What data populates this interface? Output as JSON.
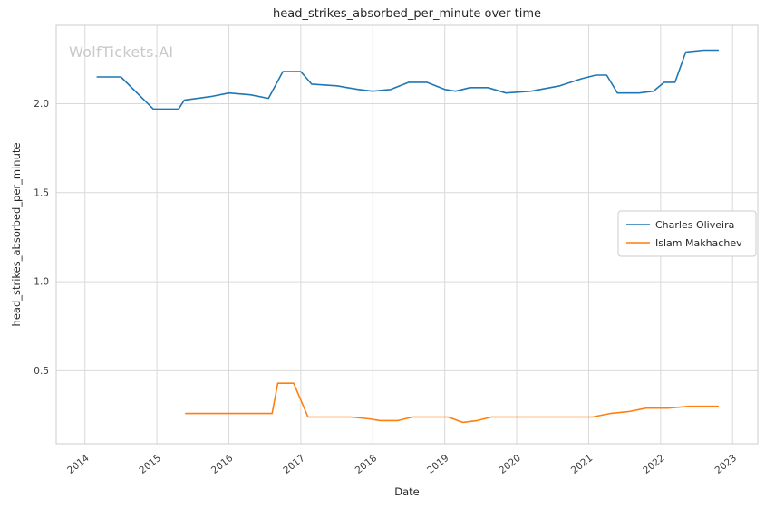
{
  "watermark": "WolfTickets.AI",
  "colors": {
    "series1": "#1f77b4",
    "series2": "#ff7f0e",
    "grid": "#d9d9d9",
    "axis_border": "#cccccc",
    "text": "#262626",
    "tick_text": "#3a3a3a",
    "watermark": "#c9c9c9",
    "legend_border": "#cccccc",
    "background": "#ffffff"
  },
  "chart_data": {
    "type": "line",
    "title": "head_strikes_absorbed_per_minute over time",
    "xlabel": "Date",
    "ylabel": "head_strikes_absorbed_per_minute",
    "xlim": [
      2013.6,
      2023.35
    ],
    "ylim": [
      0.09,
      2.44
    ],
    "x_ticks": [
      2014,
      2015,
      2016,
      2017,
      2018,
      2019,
      2020,
      2021,
      2022,
      2023
    ],
    "y_ticks": [
      0.5,
      1.0,
      1.5,
      2.0
    ],
    "grid": true,
    "legend_position": "center right",
    "series": [
      {
        "name": "Charles Oliveira",
        "color": "#1f77b4",
        "x": [
          2014.17,
          2014.5,
          2014.95,
          2015.3,
          2015.38,
          2015.75,
          2016.0,
          2016.3,
          2016.55,
          2016.75,
          2017.0,
          2017.15,
          2017.5,
          2017.8,
          2018.0,
          2018.25,
          2018.5,
          2018.75,
          2019.0,
          2019.15,
          2019.35,
          2019.6,
          2019.85,
          2020.2,
          2020.6,
          2020.9,
          2021.1,
          2021.25,
          2021.4,
          2021.7,
          2021.9,
          2022.05,
          2022.2,
          2022.35,
          2022.6,
          2022.8
        ],
        "y": [
          2.15,
          2.15,
          1.97,
          1.97,
          2.02,
          2.04,
          2.06,
          2.05,
          2.03,
          2.18,
          2.18,
          2.11,
          2.1,
          2.08,
          2.07,
          2.08,
          2.12,
          2.12,
          2.08,
          2.07,
          2.09,
          2.09,
          2.06,
          2.07,
          2.1,
          2.14,
          2.16,
          2.16,
          2.06,
          2.06,
          2.07,
          2.12,
          2.12,
          2.29,
          2.3,
          2.3
        ]
      },
      {
        "name": "Islam Makhachev",
        "color": "#ff7f0e",
        "x": [
          2015.4,
          2015.7,
          2016.0,
          2016.3,
          2016.6,
          2016.68,
          2016.9,
          2017.1,
          2017.4,
          2017.7,
          2017.95,
          2018.1,
          2018.35,
          2018.55,
          2018.8,
          2019.05,
          2019.25,
          2019.45,
          2019.65,
          2019.9,
          2020.2,
          2020.5,
          2020.8,
          2021.05,
          2021.3,
          2021.55,
          2021.8,
          2022.1,
          2022.4,
          2022.8
        ],
        "y": [
          0.26,
          0.26,
          0.26,
          0.26,
          0.26,
          0.43,
          0.43,
          0.24,
          0.24,
          0.24,
          0.23,
          0.22,
          0.22,
          0.24,
          0.24,
          0.24,
          0.21,
          0.22,
          0.24,
          0.24,
          0.24,
          0.24,
          0.24,
          0.24,
          0.26,
          0.27,
          0.29,
          0.29,
          0.3,
          0.3
        ]
      }
    ]
  }
}
